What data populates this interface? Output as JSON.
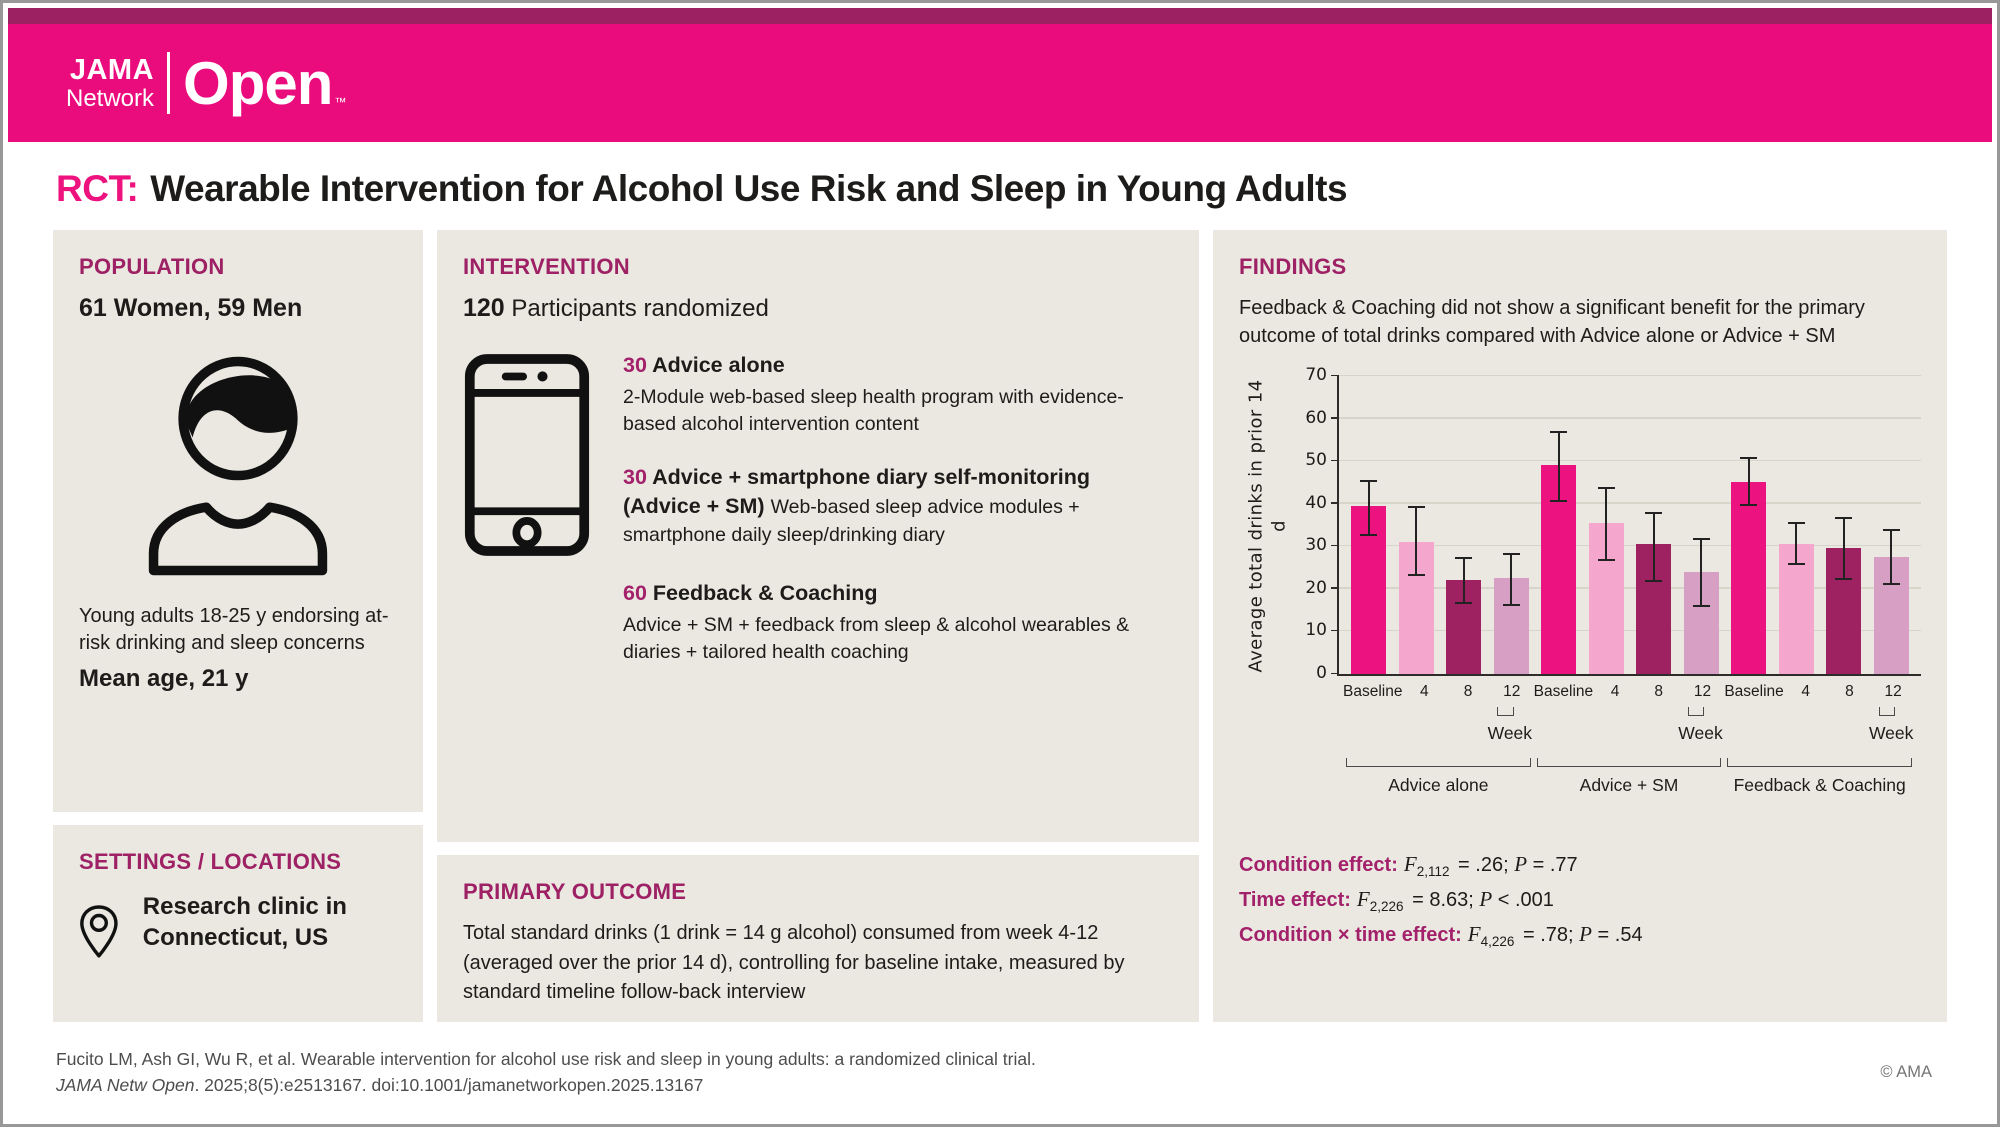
{
  "colors": {
    "brand_pink": "#EA0C7C",
    "dark_strip": "#9B2162",
    "heading_magenta": "#9D2164",
    "panel_bg": "#EAE8E0",
    "bar_baseline": "#EC1380",
    "bar_week4": "#F5A6CC",
    "bar_week8": "#9E2162",
    "bar_week12": "#D79FC3"
  },
  "header": {
    "brand_jama": "JAMA",
    "brand_network": "Network",
    "brand_open": "Open",
    "brand_tm": "™"
  },
  "title": {
    "prefix": "RCT:",
    "text": "Wearable Intervention for Alcohol Use Risk and Sleep in Young Adults"
  },
  "population": {
    "heading": "POPULATION",
    "counts": "61 Women, 59 Men",
    "description": "Young adults 18-25 y endorsing at-risk drinking and sleep concerns",
    "mean_age": "Mean age, 21 y"
  },
  "intervention": {
    "heading": "INTERVENTION",
    "total_n": "120",
    "total_label": "Participants randomized",
    "arms": [
      {
        "n": "30",
        "name": "Advice alone",
        "description": "2-Module web-based sleep health program with evidence-based alcohol intervention content"
      },
      {
        "n": "30",
        "name": "Advice + smartphone diary self-monitoring (Advice + SM)",
        "description": "Web-based sleep advice modules + smartphone daily sleep/drinking diary"
      },
      {
        "n": "60",
        "name": "Feedback & Coaching",
        "description": "Advice + SM + feedback from sleep & alcohol wearables & diaries + tailored health coaching"
      }
    ]
  },
  "settings": {
    "heading": "SETTINGS / LOCATIONS",
    "text": "Research clinic in Connecticut, US"
  },
  "primary_outcome": {
    "heading": "PRIMARY OUTCOME",
    "text": "Total standard drinks (1 drink = 14 g alcohol) consumed from week 4-12 (averaged over the prior 14 d), controlling for baseline intake, measured by standard timeline follow-back interview"
  },
  "findings": {
    "heading": "FINDINGS",
    "summary": "Feedback & Coaching did not show a significant benefit for the primary outcome of total drinks compared with Advice alone or Advice + SM",
    "stats": [
      {
        "label": "Condition effect:",
        "f_symbol": "F",
        "f_sub": "2,112",
        "f_rhs": "= .26;",
        "p_symbol": "P",
        "p_rhs": "= .77"
      },
      {
        "label": "Time effect:",
        "f_symbol": "F",
        "f_sub": "2,226",
        "f_rhs": "= 8.63;",
        "p_symbol": "P",
        "p_rhs": "< .001"
      },
      {
        "label": "Condition × time effect:",
        "f_symbol": "F",
        "f_sub": "4,226",
        "f_rhs": "= .78;",
        "p_symbol": "P",
        "p_rhs": "= .54"
      }
    ]
  },
  "chart_data": {
    "type": "bar",
    "ylabel": "Average total drinks in prior 14 d",
    "ylim": [
      0,
      70
    ],
    "yticks": [
      0,
      10,
      20,
      30,
      40,
      50,
      60,
      70
    ],
    "grid": true,
    "categories": [
      "Baseline",
      "4",
      "8",
      "12"
    ],
    "week_bracket_label": "Week",
    "bar_colors": [
      "#EC1380",
      "#F5A6CC",
      "#9E2162",
      "#D79FC3"
    ],
    "groups": [
      {
        "name": "Advice alone",
        "values": [
          39.5,
          31,
          22,
          22.5
        ],
        "error_low": [
          32.5,
          23,
          16.5,
          16
        ],
        "error_high": [
          45.5,
          39.5,
          27.5,
          28.5
        ]
      },
      {
        "name": "Advice + SM",
        "values": [
          49,
          35.5,
          30.5,
          24
        ],
        "error_low": [
          40.5,
          26.5,
          21.5,
          15.8
        ],
        "error_high": [
          57,
          44,
          38,
          32
        ]
      },
      {
        "name": "Feedback & Coaching",
        "values": [
          45,
          30.5,
          29.5,
          27.5
        ],
        "error_low": [
          39.5,
          25.5,
          22,
          21
        ],
        "error_high": [
          51,
          35.8,
          37,
          34
        ]
      }
    ]
  },
  "footer": {
    "citation": "Fucito LM, Ash GI, Wu R, et al. Wearable intervention for alcohol use risk and sleep in young adults: a randomized clinical trial.",
    "journal": "JAMA Netw Open",
    "citation_rest": ". 2025;8(5):e2513167. doi:10.1001/jamanetworkopen.2025.13167",
    "copyright": "© AMA"
  }
}
